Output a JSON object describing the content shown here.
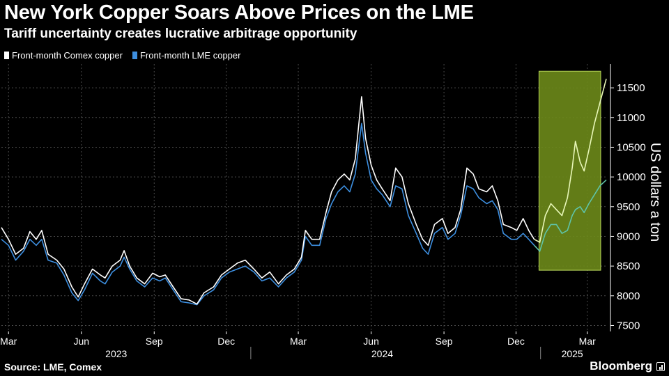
{
  "title": "New York Copper Soars Above Prices on the LME",
  "subtitle": "Tariff uncertainty creates lucrative arbitrage opportunity",
  "source": "Source: LME, Comex",
  "brand": "Bloomberg",
  "colors": {
    "background": "#000000",
    "comex": "#ffffff",
    "lme": "#3d8fe0",
    "highlight_fill": "#6d8a1a",
    "highlight_border": "#b8d85a",
    "grid": "#4a4a4a"
  },
  "chart_data": {
    "type": "line",
    "title": "New York Copper Soars Above Prices on the LME",
    "subtitle": "Tariff uncertainty creates lucrative arbitrage opportunity",
    "ylabel": "US dollars a ton",
    "y_axis_position": "right",
    "ylim": [
      7400,
      11900
    ],
    "yticks": [
      7500,
      8000,
      8500,
      9000,
      9500,
      10000,
      10500,
      11000,
      11500
    ],
    "xlim": [
      "2023-02-20",
      "2025-03-25"
    ],
    "xticks": [
      {
        "date": "2023-03-01",
        "label": "Mar"
      },
      {
        "date": "2023-06-01",
        "label": "Jun"
      },
      {
        "date": "2023-09-01",
        "label": "Sep"
      },
      {
        "date": "2023-12-01",
        "label": "Dec"
      },
      {
        "date": "2024-03-01",
        "label": "Mar"
      },
      {
        "date": "2024-06-01",
        "label": "Jun"
      },
      {
        "date": "2024-09-01",
        "label": "Sep"
      },
      {
        "date": "2024-12-01",
        "label": "Dec"
      },
      {
        "date": "2025-03-01",
        "label": "Mar"
      }
    ],
    "years": [
      {
        "label": "2023",
        "center": "2023-07-15"
      },
      {
        "label": "2024",
        "center": "2024-06-15"
      },
      {
        "label": "2025",
        "center": "2025-02-10"
      }
    ],
    "year_dividers": [
      "2024-01-01",
      "2025-01-01"
    ],
    "grid": true,
    "legend_position": "top-left",
    "highlight": {
      "x_start": "2024-12-30",
      "x_end": "2025-03-28",
      "y_min": 8430,
      "y_max": 11780
    },
    "series": [
      {
        "name": "Front-month Comex copper",
        "points": [
          [
            "2023-02-20",
            9150
          ],
          [
            "2023-03-01",
            8950
          ],
          [
            "2023-03-10",
            8700
          ],
          [
            "2023-03-20",
            8800
          ],
          [
            "2023-03-28",
            9080
          ],
          [
            "2023-04-05",
            8950
          ],
          [
            "2023-04-12",
            9100
          ],
          [
            "2023-04-20",
            8700
          ],
          [
            "2023-05-01",
            8600
          ],
          [
            "2023-05-10",
            8450
          ],
          [
            "2023-05-20",
            8150
          ],
          [
            "2023-05-28",
            7980
          ],
          [
            "2023-06-05",
            8200
          ],
          [
            "2023-06-15",
            8450
          ],
          [
            "2023-06-25",
            8350
          ],
          [
            "2023-07-01",
            8300
          ],
          [
            "2023-07-10",
            8500
          ],
          [
            "2023-07-20",
            8600
          ],
          [
            "2023-07-25",
            8760
          ],
          [
            "2023-08-01",
            8500
          ],
          [
            "2023-08-10",
            8300
          ],
          [
            "2023-08-20",
            8200
          ],
          [
            "2023-08-30",
            8380
          ],
          [
            "2023-09-08",
            8320
          ],
          [
            "2023-09-15",
            8350
          ],
          [
            "2023-09-25",
            8150
          ],
          [
            "2023-10-05",
            7950
          ],
          [
            "2023-10-15",
            7930
          ],
          [
            "2023-10-25",
            7860
          ],
          [
            "2023-11-03",
            8050
          ],
          [
            "2023-11-15",
            8150
          ],
          [
            "2023-11-25",
            8350
          ],
          [
            "2023-12-05",
            8450
          ],
          [
            "2023-12-15",
            8550
          ],
          [
            "2023-12-25",
            8600
          ],
          [
            "2024-01-05",
            8450
          ],
          [
            "2024-01-15",
            8300
          ],
          [
            "2024-01-25",
            8400
          ],
          [
            "2024-02-05",
            8200
          ],
          [
            "2024-02-15",
            8350
          ],
          [
            "2024-02-25",
            8450
          ],
          [
            "2024-03-05",
            8650
          ],
          [
            "2024-03-10",
            9100
          ],
          [
            "2024-03-18",
            8950
          ],
          [
            "2024-03-28",
            8950
          ],
          [
            "2024-04-05",
            9400
          ],
          [
            "2024-04-12",
            9750
          ],
          [
            "2024-04-20",
            9950
          ],
          [
            "2024-04-28",
            10050
          ],
          [
            "2024-05-05",
            9950
          ],
          [
            "2024-05-12",
            10300
          ],
          [
            "2024-05-20",
            11350
          ],
          [
            "2024-05-25",
            10650
          ],
          [
            "2024-06-01",
            10200
          ],
          [
            "2024-06-08",
            9950
          ],
          [
            "2024-06-15",
            9800
          ],
          [
            "2024-06-25",
            9600
          ],
          [
            "2024-07-02",
            10150
          ],
          [
            "2024-07-10",
            10000
          ],
          [
            "2024-07-18",
            9550
          ],
          [
            "2024-07-28",
            9200
          ],
          [
            "2024-08-05",
            8950
          ],
          [
            "2024-08-12",
            8850
          ],
          [
            "2024-08-20",
            9200
          ],
          [
            "2024-08-30",
            9300
          ],
          [
            "2024-09-06",
            9050
          ],
          [
            "2024-09-15",
            9150
          ],
          [
            "2024-09-22",
            9450
          ],
          [
            "2024-09-30",
            10150
          ],
          [
            "2024-10-08",
            10050
          ],
          [
            "2024-10-15",
            9800
          ],
          [
            "2024-10-25",
            9750
          ],
          [
            "2024-11-01",
            9850
          ],
          [
            "2024-11-08",
            9600
          ],
          [
            "2024-11-15",
            9200
          ],
          [
            "2024-11-25",
            9150
          ],
          [
            "2024-12-02",
            9100
          ],
          [
            "2024-12-10",
            9300
          ],
          [
            "2024-12-17",
            9100
          ],
          [
            "2024-12-24",
            8950
          ],
          [
            "2024-12-31",
            8900
          ],
          [
            "2025-01-07",
            9350
          ],
          [
            "2025-01-14",
            9550
          ],
          [
            "2025-01-21",
            9450
          ],
          [
            "2025-01-28",
            9350
          ],
          [
            "2025-02-04",
            9650
          ],
          [
            "2025-02-10",
            10150
          ],
          [
            "2025-02-14",
            10600
          ],
          [
            "2025-02-20",
            10250
          ],
          [
            "2025-02-25",
            10100
          ],
          [
            "2025-03-03",
            10450
          ],
          [
            "2025-03-10",
            10900
          ],
          [
            "2025-03-17",
            11250
          ],
          [
            "2025-03-25",
            11650
          ]
        ]
      },
      {
        "name": "Front-month LME copper",
        "points": [
          [
            "2023-02-20",
            8950
          ],
          [
            "2023-03-01",
            8850
          ],
          [
            "2023-03-10",
            8600
          ],
          [
            "2023-03-20",
            8750
          ],
          [
            "2023-03-28",
            8950
          ],
          [
            "2023-04-05",
            8850
          ],
          [
            "2023-04-12",
            8950
          ],
          [
            "2023-04-20",
            8600
          ],
          [
            "2023-05-01",
            8550
          ],
          [
            "2023-05-10",
            8350
          ],
          [
            "2023-05-20",
            8050
          ],
          [
            "2023-05-28",
            7920
          ],
          [
            "2023-06-05",
            8100
          ],
          [
            "2023-06-15",
            8380
          ],
          [
            "2023-06-25",
            8250
          ],
          [
            "2023-07-01",
            8200
          ],
          [
            "2023-07-10",
            8400
          ],
          [
            "2023-07-20",
            8500
          ],
          [
            "2023-07-25",
            8650
          ],
          [
            "2023-08-01",
            8450
          ],
          [
            "2023-08-10",
            8250
          ],
          [
            "2023-08-20",
            8150
          ],
          [
            "2023-08-30",
            8300
          ],
          [
            "2023-09-08",
            8250
          ],
          [
            "2023-09-15",
            8300
          ],
          [
            "2023-09-25",
            8100
          ],
          [
            "2023-10-05",
            7900
          ],
          [
            "2023-10-15",
            7880
          ],
          [
            "2023-10-25",
            7850
          ],
          [
            "2023-11-03",
            8000
          ],
          [
            "2023-11-15",
            8100
          ],
          [
            "2023-11-25",
            8300
          ],
          [
            "2023-12-05",
            8400
          ],
          [
            "2023-12-15",
            8450
          ],
          [
            "2023-12-25",
            8500
          ],
          [
            "2024-01-05",
            8400
          ],
          [
            "2024-01-15",
            8250
          ],
          [
            "2024-01-25",
            8300
          ],
          [
            "2024-02-05",
            8150
          ],
          [
            "2024-02-15",
            8300
          ],
          [
            "2024-02-25",
            8400
          ],
          [
            "2024-03-05",
            8600
          ],
          [
            "2024-03-10",
            9000
          ],
          [
            "2024-03-18",
            8850
          ],
          [
            "2024-03-28",
            8850
          ],
          [
            "2024-04-05",
            9300
          ],
          [
            "2024-04-12",
            9550
          ],
          [
            "2024-04-20",
            9750
          ],
          [
            "2024-04-28",
            9850
          ],
          [
            "2024-05-05",
            9750
          ],
          [
            "2024-05-12",
            10050
          ],
          [
            "2024-05-20",
            10900
          ],
          [
            "2024-05-25",
            10400
          ],
          [
            "2024-06-01",
            9950
          ],
          [
            "2024-06-08",
            9800
          ],
          [
            "2024-06-15",
            9700
          ],
          [
            "2024-06-25",
            9500
          ],
          [
            "2024-07-02",
            9850
          ],
          [
            "2024-07-10",
            9800
          ],
          [
            "2024-07-18",
            9350
          ],
          [
            "2024-07-28",
            9050
          ],
          [
            "2024-08-05",
            8800
          ],
          [
            "2024-08-12",
            8700
          ],
          [
            "2024-08-20",
            9050
          ],
          [
            "2024-08-30",
            9150
          ],
          [
            "2024-09-06",
            8950
          ],
          [
            "2024-09-15",
            9050
          ],
          [
            "2024-09-22",
            9350
          ],
          [
            "2024-09-30",
            9850
          ],
          [
            "2024-10-08",
            9800
          ],
          [
            "2024-10-15",
            9650
          ],
          [
            "2024-10-25",
            9550
          ],
          [
            "2024-11-01",
            9600
          ],
          [
            "2024-11-08",
            9450
          ],
          [
            "2024-11-15",
            9050
          ],
          [
            "2024-11-25",
            8950
          ],
          [
            "2024-12-02",
            8950
          ],
          [
            "2024-12-10",
            9050
          ],
          [
            "2024-12-17",
            8950
          ],
          [
            "2024-12-24",
            8850
          ],
          [
            "2024-12-31",
            8750
          ],
          [
            "2025-01-07",
            9050
          ],
          [
            "2025-01-14",
            9200
          ],
          [
            "2025-01-21",
            9200
          ],
          [
            "2025-01-28",
            9050
          ],
          [
            "2025-02-04",
            9100
          ],
          [
            "2025-02-10",
            9350
          ],
          [
            "2025-02-14",
            9450
          ],
          [
            "2025-02-20",
            9500
          ],
          [
            "2025-02-25",
            9400
          ],
          [
            "2025-03-03",
            9550
          ],
          [
            "2025-03-10",
            9700
          ],
          [
            "2025-03-17",
            9850
          ],
          [
            "2025-03-25",
            9950
          ]
        ]
      }
    ]
  }
}
